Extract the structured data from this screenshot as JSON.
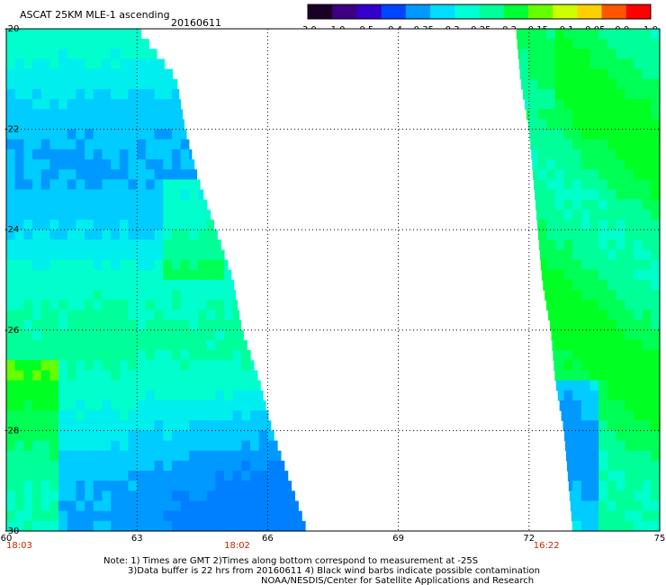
{
  "header": {
    "title": "ASCAT 25KM MLE-1 ascending",
    "date": "20160611"
  },
  "colorbar": {
    "labels": [
      "-3.0",
      "-1.0",
      "-0.5",
      "-0.4",
      "-0.35",
      "-0.3",
      "-0.25",
      "-0.2",
      "-0.15",
      "-0.1",
      "-0.05",
      "0.0",
      "1.0"
    ],
    "colors": [
      "#1a0026",
      "#3d0080",
      "#3300cc",
      "#0044ff",
      "#0099ff",
      "#00ddff",
      "#00ffd5",
      "#00ff99",
      "#00ff33",
      "#66ff00",
      "#ccff00",
      "#ffd000",
      "#ff5500",
      "#ff0000"
    ]
  },
  "map": {
    "lon_ticks": [
      "60",
      "63",
      "66",
      "69",
      "72",
      "75"
    ],
    "lat_ticks": [
      "-20",
      "-22",
      "-24",
      "-26",
      "-28",
      "-30"
    ],
    "lon_range": [
      60,
      75
    ],
    "lat_range": [
      -30,
      -20
    ],
    "grid": "dotted",
    "pass_times": [
      {
        "label": "18:03",
        "lon": 60
      },
      {
        "label": "18:02",
        "lon": 65.3
      },
      {
        "label": "16:22",
        "lon": 72.4
      }
    ],
    "swaths": [
      {
        "name": "west",
        "west_edge_lon": 60,
        "east_edge": [
          [
            -20,
            63.0
          ],
          [
            -21,
            63.9
          ],
          [
            -22,
            64.1
          ],
          [
            -23,
            64.4
          ],
          [
            -24,
            64.8
          ],
          [
            -25,
            65.2
          ],
          [
            -26,
            65.4
          ],
          [
            -27,
            65.8
          ],
          [
            -28,
            66.1
          ],
          [
            -29,
            66.5
          ],
          [
            -30,
            66.9
          ]
        ]
      },
      {
        "name": "east",
        "east_edge_lon": 75,
        "west_edge": [
          [
            -20,
            71.7
          ],
          [
            -21,
            71.8
          ],
          [
            -22,
            72.0
          ],
          [
            -23,
            72.1
          ],
          [
            -24,
            72.2
          ],
          [
            -25,
            72.3
          ],
          [
            -26,
            72.5
          ],
          [
            -27,
            72.6
          ],
          [
            -28,
            72.8
          ],
          [
            -29,
            72.9
          ],
          [
            -30,
            73.0
          ]
        ]
      }
    ]
  },
  "footer": {
    "note_line1": "Note: 1) Times are GMT 2)Times along bottom correspond to measurement at -25S",
    "note_line2": "3)Data buffer is 22 hrs from 20160611 4) Black wind barbs indicate possible contamination",
    "note_line3": "NOAA/NESDIS/Center for Satellite Applications and Research"
  }
}
